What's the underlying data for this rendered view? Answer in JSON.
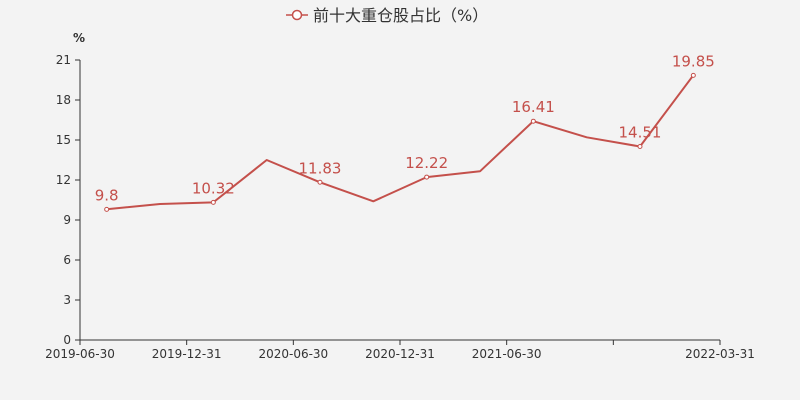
{
  "chart_data": {
    "type": "line",
    "legend": {
      "label": "前十大重仓股占比（%）",
      "placement": "top-center"
    },
    "y_unit": "%",
    "yticks": [
      0,
      3,
      6,
      9,
      12,
      15,
      18,
      21
    ],
    "ylim": [
      0,
      21
    ],
    "grid": false,
    "x_tick_labels": [
      "2019-06-30",
      "2019-12-31",
      "2020-06-30",
      "2020-12-31",
      "2021-06-30",
      "",
      "2022-03-31"
    ],
    "series": [
      {
        "name": "前十大重仓股占比（%）",
        "color": "#c4504b",
        "points": [
          {
            "x": "2019-06-30",
            "y": 9.8,
            "label": "9.8"
          },
          {
            "x": "2019-09-30",
            "y": 10.2,
            "label": ""
          },
          {
            "x": "2019-12-31",
            "y": 10.32,
            "label": "10.32"
          },
          {
            "x": "2020-03-31",
            "y": 13.5,
            "label": ""
          },
          {
            "x": "2020-06-30",
            "y": 11.83,
            "label": "11.83"
          },
          {
            "x": "2020-09-30",
            "y": 10.4,
            "label": ""
          },
          {
            "x": "2020-12-31",
            "y": 12.22,
            "label": "12.22"
          },
          {
            "x": "2021-03-31",
            "y": 12.65,
            "label": ""
          },
          {
            "x": "2021-06-30",
            "y": 16.41,
            "label": "16.41"
          },
          {
            "x": "2021-09-30",
            "y": 15.2,
            "label": ""
          },
          {
            "x": "2021-12-31",
            "y": 14.51,
            "label": "14.51"
          },
          {
            "x": "2022-03-31",
            "y": 19.85,
            "label": "19.85"
          }
        ]
      }
    ]
  },
  "colors": {
    "background": "#f3f3f3",
    "axis": "#333333",
    "series": "#c4504b"
  }
}
